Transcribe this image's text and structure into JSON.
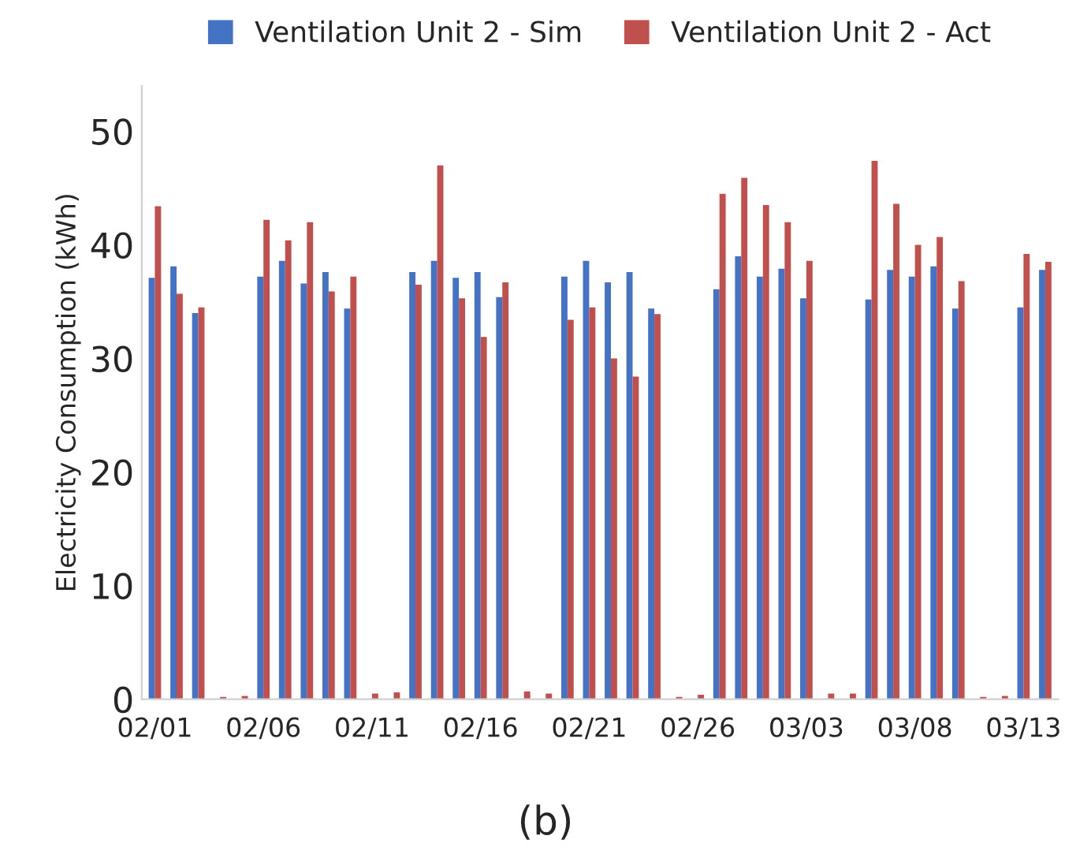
{
  "chart_data": {
    "type": "bar",
    "categories": [
      "02/01",
      null,
      null,
      null,
      null,
      "02/06",
      null,
      null,
      null,
      null,
      "02/11",
      null,
      null,
      null,
      null,
      "02/16",
      null,
      null,
      null,
      null,
      "02/21",
      null,
      null,
      null,
      null,
      "02/26",
      null,
      null,
      null,
      null,
      "03/03",
      null,
      null,
      null,
      null,
      "03/08",
      null,
      null,
      null,
      null,
      "03/13",
      null
    ],
    "series": [
      {
        "name": "Ventilation Unit 2 - Sim",
        "color": "#4472c4",
        "values": [
          37.1,
          38.1,
          34.0,
          0,
          0,
          37.2,
          38.6,
          36.6,
          37.6,
          34.4,
          0,
          0,
          37.6,
          38.6,
          37.1,
          37.6,
          35.4,
          0,
          0,
          37.2,
          38.6,
          36.7,
          37.6,
          34.4,
          0,
          0,
          36.1,
          39.0,
          37.2,
          37.9,
          35.3,
          0,
          0,
          35.2,
          37.8,
          37.2,
          38.1,
          34.4,
          0,
          0,
          34.5,
          37.8
        ]
      },
      {
        "name": "Ventilation Unit 2 - Act",
        "color": "#c0504d",
        "values": [
          43.4,
          35.7,
          34.5,
          0.2,
          0.3,
          42.2,
          40.4,
          42.0,
          35.9,
          37.2,
          0.5,
          0.6,
          36.5,
          47.0,
          35.3,
          31.9,
          36.7,
          0.7,
          0.5,
          33.4,
          34.5,
          30.0,
          28.4,
          33.9,
          0.2,
          0.4,
          44.5,
          45.9,
          43.5,
          42.0,
          38.6,
          0.5,
          0.5,
          47.4,
          43.6,
          40.0,
          40.7,
          36.8,
          0.2,
          0.3,
          39.2,
          38.5
        ]
      }
    ],
    "ylabel": "Electricity Consumption (kWh)",
    "ylim": [
      0,
      54
    ],
    "yticks": [
      0,
      10,
      20,
      30,
      40,
      50
    ],
    "grid": false,
    "legend": "top",
    "annotations": [
      "(b)"
    ]
  }
}
